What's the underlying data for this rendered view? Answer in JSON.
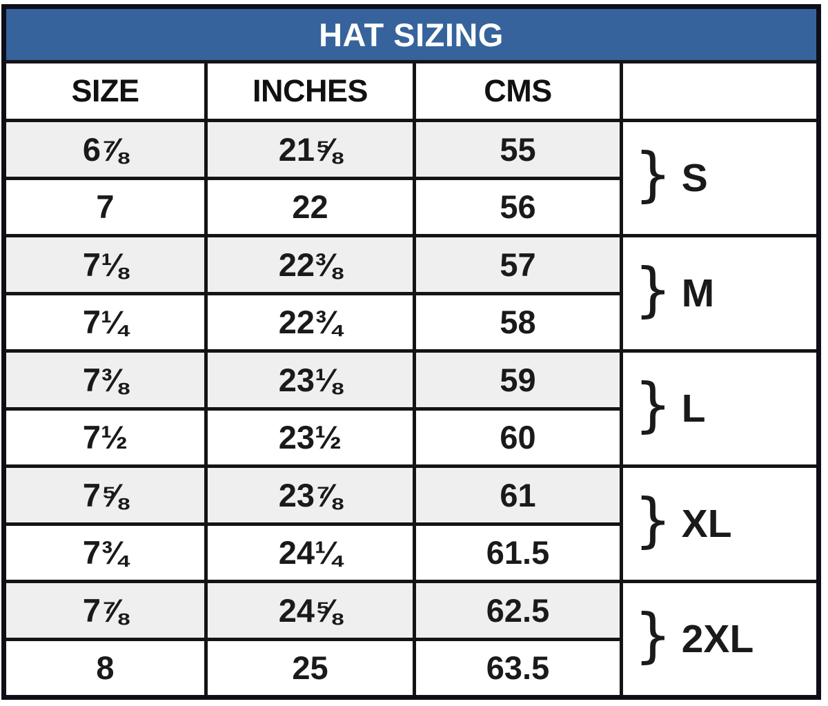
{
  "title": "HAT SIZING",
  "columns": {
    "size": "SIZE",
    "inches": "INCHES",
    "cms": "CMS",
    "group": ""
  },
  "rows": [
    {
      "size": "6⅞",
      "inches": "21⅝",
      "cms": "55"
    },
    {
      "size": "7",
      "inches": "22",
      "cms": "56"
    },
    {
      "size": "7⅛",
      "inches": "22⅜",
      "cms": "57"
    },
    {
      "size": "7¼",
      "inches": "22¾",
      "cms": "58"
    },
    {
      "size": "7⅜",
      "inches": "23⅛",
      "cms": "59"
    },
    {
      "size": "7½",
      "inches": "23½",
      "cms": "60"
    },
    {
      "size": "7⅝",
      "inches": "23⅞",
      "cms": "61"
    },
    {
      "size": "7¾",
      "inches": "24¼",
      "cms": "61.5"
    },
    {
      "size": "7⅞",
      "inches": "24⅝",
      "cms": "62.5"
    },
    {
      "size": "8",
      "inches": "25",
      "cms": "63.5"
    }
  ],
  "groups": [
    {
      "brace": "}",
      "label": "S"
    },
    {
      "brace": "}",
      "label": "M"
    },
    {
      "brace": "}",
      "label": "L"
    },
    {
      "brace": "}",
      "label": "XL"
    },
    {
      "brace": "}",
      "label": "2XL"
    }
  ],
  "colors": {
    "banner_bg": "#36639c",
    "banner_text": "#ffffff",
    "row_alt_bg": "#efefef",
    "row_bg": "#ffffff",
    "grid_line": "#141414",
    "outer_border": "#0e0e19",
    "text": "#1a1a1a"
  }
}
